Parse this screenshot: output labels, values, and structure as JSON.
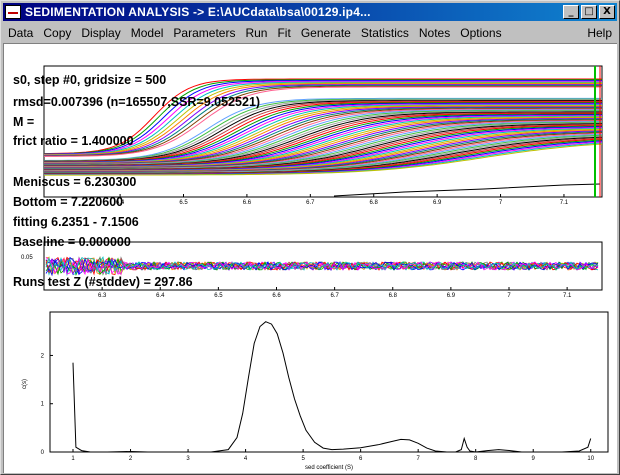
{
  "window": {
    "title": "SEDIMENTATION ANALYSIS -> E:\\AUCdata\\bsa\\00129.ip4...",
    "minimize_glyph": "_",
    "maximize_glyph": "□",
    "close_glyph": "X"
  },
  "menu": [
    "Data",
    "Copy",
    "Display",
    "Model",
    "Parameters",
    "Run",
    "Fit",
    "Generate",
    "Statistics",
    "Notes",
    "Options",
    "Help"
  ],
  "overlay": {
    "step": "s0, step #0, gridsize = 500",
    "rmsd": "rmsd=0.007396 (n=165507,SSR=9.052521)",
    "m": "M =",
    "frict": "frict ratio = 1.400000",
    "meniscus": "Meniscus = 6.230300",
    "bottom": "Bottom = 7.220600",
    "fitting": "fitting 6.2351 - 7.1506",
    "baseline": "Baseline = 0.000000",
    "runs": "Runs test Z (#stddev) = 297.86"
  },
  "data_plot": {
    "x_ticks": [
      "6.4",
      "6.5",
      "6.6",
      "6.7",
      "6.8",
      "6.9",
      "7",
      "7.1"
    ],
    "x_tick_values": [
      6.4,
      6.5,
      6.6,
      6.7,
      6.8,
      6.9,
      7.0,
      7.1
    ]
  },
  "residual_plot": {
    "y_label": "0.05",
    "x_ticks": [
      "6.3",
      "6.4",
      "6.5",
      "6.6",
      "6.7",
      "6.8",
      "6.9",
      "7",
      "7.1"
    ],
    "x_tick_values": [
      6.3,
      6.4,
      6.5,
      6.6,
      6.7,
      6.8,
      6.9,
      7.0,
      7.1
    ]
  },
  "chart_data": {
    "type": "line",
    "title": "",
    "xlabel": "sed coefficient (S)",
    "ylabel": "c(s)",
    "xlim": [
      0.6,
      10.3
    ],
    "ylim": [
      0,
      2.9
    ],
    "x_ticks": [
      1,
      2,
      3,
      4,
      5,
      6,
      7,
      8,
      9,
      10
    ],
    "y_ticks": [
      0,
      1,
      2
    ],
    "series": [
      {
        "x": [
          1.0,
          1.05,
          1.15,
          1.3,
          1.6,
          2.0,
          2.3,
          2.6,
          3.0,
          3.4,
          3.7,
          3.85,
          3.95,
          4.05,
          4.15,
          4.25,
          4.35,
          4.45,
          4.55,
          4.65,
          4.75,
          4.85,
          4.95,
          5.05,
          5.2,
          5.35,
          5.5,
          5.7,
          6.0,
          6.3,
          6.55,
          6.7,
          6.85,
          7.0,
          7.15,
          7.3,
          7.5,
          7.65,
          7.75,
          7.8,
          7.85,
          7.9,
          8.0,
          8.2,
          8.4,
          8.6,
          8.8,
          9.0,
          9.2,
          9.5,
          9.8,
          9.95,
          10.0
        ],
        "y": [
          1.85,
          0.1,
          0.03,
          0.0,
          0.0,
          0.01,
          0.0,
          0.0,
          0.0,
          0.0,
          0.05,
          0.3,
          0.8,
          1.55,
          2.25,
          2.6,
          2.7,
          2.65,
          2.45,
          2.05,
          1.55,
          1.1,
          0.75,
          0.45,
          0.2,
          0.08,
          0.05,
          0.06,
          0.09,
          0.15,
          0.22,
          0.26,
          0.25,
          0.18,
          0.08,
          0.02,
          0.0,
          0.0,
          0.05,
          0.28,
          0.1,
          0.02,
          0.0,
          0.03,
          0.05,
          0.03,
          0.0,
          0.0,
          0.0,
          0.0,
          0.02,
          0.1,
          0.28
        ]
      }
    ]
  }
}
